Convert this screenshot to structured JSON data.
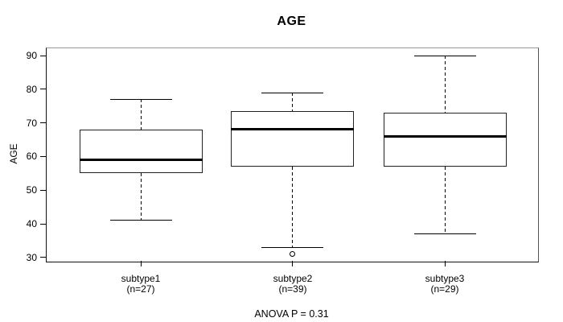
{
  "title": "AGE",
  "y_axis": {
    "label": "AGE"
  },
  "chart_data": {
    "type": "boxplot",
    "title": "AGE",
    "xlabel": "",
    "ylabel": "AGE",
    "ylim": [
      29,
      92.4
    ],
    "yticks": [
      30,
      40,
      50,
      60,
      70,
      80,
      90
    ],
    "grid": false,
    "legend": false,
    "annotation": "ANOVA P = 0.31",
    "groups": [
      {
        "label": "subtype1",
        "n_label": "(n=27)",
        "n": 27,
        "whisker_low": 41,
        "q1": 55,
        "median": 59,
        "q3": 68,
        "whisker_high": 77,
        "outliers": []
      },
      {
        "label": "subtype2",
        "n_label": "(n=39)",
        "n": 39,
        "whisker_low": 33,
        "q1": 57,
        "median": 68,
        "q3": 73.5,
        "whisker_high": 79,
        "outliers": [
          31
        ]
      },
      {
        "label": "subtype3",
        "n_label": "(n=29)",
        "n": 29,
        "whisker_low": 37,
        "q1": 57,
        "median": 66,
        "q3": 73,
        "whisker_high": 90,
        "outliers": []
      }
    ],
    "colors": {
      "line": "#000000",
      "box_fill": "#ffffff",
      "frame": "#999999",
      "background": "#ffffff"
    }
  }
}
